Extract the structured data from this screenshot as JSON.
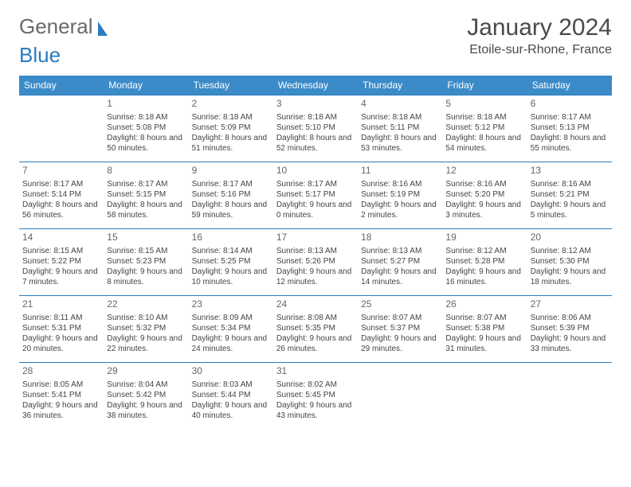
{
  "logo": {
    "text1": "General",
    "text2": "Blue"
  },
  "title": "January 2024",
  "location": "Etoile-sur-Rhone, France",
  "colors": {
    "header_bg": "#3b8bc8",
    "header_text": "#ffffff",
    "border": "#2b7bbf",
    "body_text": "#444444",
    "daynum": "#666666",
    "logo_general": "#6a6a6a",
    "logo_blue": "#2b7bbf"
  },
  "day_headers": [
    "Sunday",
    "Monday",
    "Tuesday",
    "Wednesday",
    "Thursday",
    "Friday",
    "Saturday"
  ],
  "weeks": [
    [
      null,
      {
        "n": "1",
        "sr": "8:18 AM",
        "ss": "5:08 PM",
        "dl": "8 hours and 50 minutes."
      },
      {
        "n": "2",
        "sr": "8:18 AM",
        "ss": "5:09 PM",
        "dl": "8 hours and 51 minutes."
      },
      {
        "n": "3",
        "sr": "8:18 AM",
        "ss": "5:10 PM",
        "dl": "8 hours and 52 minutes."
      },
      {
        "n": "4",
        "sr": "8:18 AM",
        "ss": "5:11 PM",
        "dl": "8 hours and 53 minutes."
      },
      {
        "n": "5",
        "sr": "8:18 AM",
        "ss": "5:12 PM",
        "dl": "8 hours and 54 minutes."
      },
      {
        "n": "6",
        "sr": "8:17 AM",
        "ss": "5:13 PM",
        "dl": "8 hours and 55 minutes."
      }
    ],
    [
      {
        "n": "7",
        "sr": "8:17 AM",
        "ss": "5:14 PM",
        "dl": "8 hours and 56 minutes."
      },
      {
        "n": "8",
        "sr": "8:17 AM",
        "ss": "5:15 PM",
        "dl": "8 hours and 58 minutes."
      },
      {
        "n": "9",
        "sr": "8:17 AM",
        "ss": "5:16 PM",
        "dl": "8 hours and 59 minutes."
      },
      {
        "n": "10",
        "sr": "8:17 AM",
        "ss": "5:17 PM",
        "dl": "9 hours and 0 minutes."
      },
      {
        "n": "11",
        "sr": "8:16 AM",
        "ss": "5:19 PM",
        "dl": "9 hours and 2 minutes."
      },
      {
        "n": "12",
        "sr": "8:16 AM",
        "ss": "5:20 PM",
        "dl": "9 hours and 3 minutes."
      },
      {
        "n": "13",
        "sr": "8:16 AM",
        "ss": "5:21 PM",
        "dl": "9 hours and 5 minutes."
      }
    ],
    [
      {
        "n": "14",
        "sr": "8:15 AM",
        "ss": "5:22 PM",
        "dl": "9 hours and 7 minutes."
      },
      {
        "n": "15",
        "sr": "8:15 AM",
        "ss": "5:23 PM",
        "dl": "9 hours and 8 minutes."
      },
      {
        "n": "16",
        "sr": "8:14 AM",
        "ss": "5:25 PM",
        "dl": "9 hours and 10 minutes."
      },
      {
        "n": "17",
        "sr": "8:13 AM",
        "ss": "5:26 PM",
        "dl": "9 hours and 12 minutes."
      },
      {
        "n": "18",
        "sr": "8:13 AM",
        "ss": "5:27 PM",
        "dl": "9 hours and 14 minutes."
      },
      {
        "n": "19",
        "sr": "8:12 AM",
        "ss": "5:28 PM",
        "dl": "9 hours and 16 minutes."
      },
      {
        "n": "20",
        "sr": "8:12 AM",
        "ss": "5:30 PM",
        "dl": "9 hours and 18 minutes."
      }
    ],
    [
      {
        "n": "21",
        "sr": "8:11 AM",
        "ss": "5:31 PM",
        "dl": "9 hours and 20 minutes."
      },
      {
        "n": "22",
        "sr": "8:10 AM",
        "ss": "5:32 PM",
        "dl": "9 hours and 22 minutes."
      },
      {
        "n": "23",
        "sr": "8:09 AM",
        "ss": "5:34 PM",
        "dl": "9 hours and 24 minutes."
      },
      {
        "n": "24",
        "sr": "8:08 AM",
        "ss": "5:35 PM",
        "dl": "9 hours and 26 minutes."
      },
      {
        "n": "25",
        "sr": "8:07 AM",
        "ss": "5:37 PM",
        "dl": "9 hours and 29 minutes."
      },
      {
        "n": "26",
        "sr": "8:07 AM",
        "ss": "5:38 PM",
        "dl": "9 hours and 31 minutes."
      },
      {
        "n": "27",
        "sr": "8:06 AM",
        "ss": "5:39 PM",
        "dl": "9 hours and 33 minutes."
      }
    ],
    [
      {
        "n": "28",
        "sr": "8:05 AM",
        "ss": "5:41 PM",
        "dl": "9 hours and 36 minutes."
      },
      {
        "n": "29",
        "sr": "8:04 AM",
        "ss": "5:42 PM",
        "dl": "9 hours and 38 minutes."
      },
      {
        "n": "30",
        "sr": "8:03 AM",
        "ss": "5:44 PM",
        "dl": "9 hours and 40 minutes."
      },
      {
        "n": "31",
        "sr": "8:02 AM",
        "ss": "5:45 PM",
        "dl": "9 hours and 43 minutes."
      },
      null,
      null,
      null
    ]
  ],
  "labels": {
    "sunrise": "Sunrise:",
    "sunset": "Sunset:",
    "daylight": "Daylight:"
  }
}
